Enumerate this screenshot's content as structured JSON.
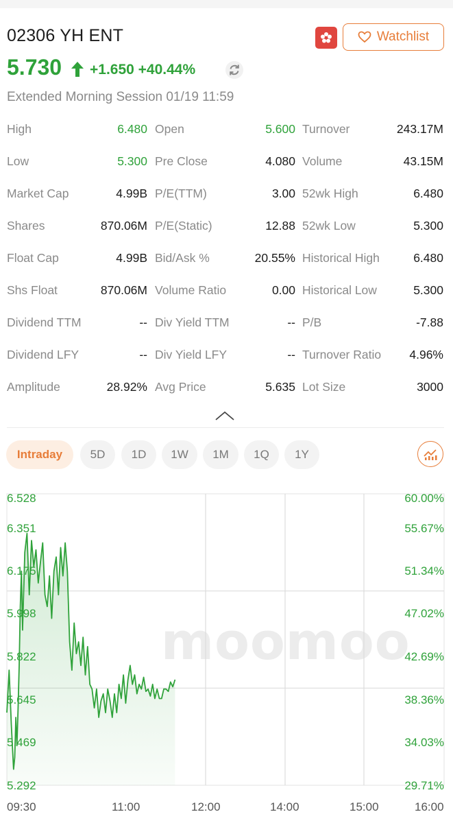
{
  "header": {
    "title": "02306 YH ENT",
    "watchlist_label": "Watchlist"
  },
  "quote": {
    "price": "5.730",
    "change": "+1.650",
    "change_pct": "+40.44%",
    "session": "Extended Morning Session 01/19 11:59"
  },
  "stats": {
    "col1": [
      {
        "label": "High",
        "value": "6.480",
        "color": "green"
      },
      {
        "label": "Low",
        "value": "5.300",
        "color": "green"
      },
      {
        "label": "Market Cap",
        "value": "4.99B"
      },
      {
        "label": "Shares",
        "value": "870.06M"
      },
      {
        "label": "Float Cap",
        "value": "4.99B"
      },
      {
        "label": "Shs Float",
        "value": "870.06M"
      },
      {
        "label": "Dividend TTM",
        "value": "--"
      },
      {
        "label": "Dividend LFY",
        "value": "--"
      },
      {
        "label": "Amplitude",
        "value": "28.92%"
      }
    ],
    "col2": [
      {
        "label": "Open",
        "value": "5.600",
        "color": "green"
      },
      {
        "label": "Pre Close",
        "value": "4.080"
      },
      {
        "label": "P/E(TTM)",
        "value": "3.00"
      },
      {
        "label": "P/E(Static)",
        "value": "12.88"
      },
      {
        "label": "Bid/Ask %",
        "value": "20.55%"
      },
      {
        "label": "Volume Ratio",
        "value": "0.00"
      },
      {
        "label": "Div Yield TTM",
        "value": "--"
      },
      {
        "label": "Div Yield LFY",
        "value": "--"
      },
      {
        "label": "Avg Price",
        "value": "5.635"
      }
    ],
    "col3": [
      {
        "label": "Turnover",
        "value": "243.17M"
      },
      {
        "label": "Volume",
        "value": "43.15M"
      },
      {
        "label": "52wk High",
        "value": "6.480"
      },
      {
        "label": "52wk Low",
        "value": "5.300"
      },
      {
        "label": "Historical High",
        "value": "6.480"
      },
      {
        "label": "Historical Low",
        "value": "5.300"
      },
      {
        "label": "P/B",
        "value": "-7.88"
      },
      {
        "label": "Turnover Ratio",
        "value": "4.96%"
      },
      {
        "label": "Lot Size",
        "value": "3000"
      }
    ]
  },
  "tabs": [
    "Intraday",
    "5D",
    "1D",
    "1W",
    "1M",
    "1Q",
    "1Y"
  ],
  "active_tab": "Intraday",
  "watermark": "moomoo",
  "colors": {
    "up": "#2fa23a",
    "accent": "#e77d39",
    "flag": "#e0463f"
  },
  "icons": [
    "hk-flag-icon",
    "heart-icon",
    "arrow-up-icon",
    "refresh-icon",
    "chevron-up-icon",
    "chart-settings-icon"
  ],
  "chart_data": {
    "type": "line",
    "y_left_ticks": [
      "6.528",
      "6.351",
      "6.175",
      "5.998",
      "5.822",
      "5.645",
      "5.469",
      "5.292"
    ],
    "y_right_ticks": [
      "60.00%",
      "55.67%",
      "51.34%",
      "47.02%",
      "42.69%",
      "38.36%",
      "34.03%",
      "29.71%"
    ],
    "x_ticks": [
      "09:30",
      "11:00",
      "12:00",
      "14:00",
      "15:00",
      "16:00"
    ],
    "ylim": [
      5.292,
      6.528
    ],
    "x_domain_minutes": [
      0,
      390
    ],
    "series": [
      {
        "x": [
          0,
          2,
          4,
          6,
          7,
          8,
          9,
          10,
          11,
          12,
          13,
          14,
          16,
          18,
          20,
          22,
          24,
          26,
          28,
          30,
          32,
          34,
          36,
          38,
          40,
          42,
          44,
          46,
          48,
          50,
          52,
          54,
          56,
          58,
          60,
          62,
          64,
          66,
          68,
          70,
          72,
          74,
          76,
          78,
          80,
          82,
          84,
          86,
          88,
          90,
          92,
          94,
          96,
          98,
          100,
          102,
          104,
          106,
          108,
          110,
          112,
          114,
          116,
          118,
          120,
          122,
          124,
          126,
          128,
          130,
          132,
          134,
          136,
          138,
          140,
          142,
          144,
          146,
          148,
          150
        ],
        "y": [
          5.6,
          5.78,
          5.55,
          5.36,
          5.41,
          5.58,
          5.46,
          5.62,
          5.8,
          6.05,
          6.2,
          5.95,
          6.28,
          6.36,
          6.1,
          6.33,
          6.22,
          6.29,
          6.15,
          6.24,
          6.32,
          6.1,
          6.05,
          6.18,
          6.0,
          6.2,
          6.26,
          6.1,
          6.3,
          6.18,
          6.32,
          6.2,
          5.9,
          5.78,
          5.98,
          5.85,
          5.9,
          5.8,
          5.92,
          5.76,
          5.88,
          5.72,
          5.7,
          5.62,
          5.7,
          5.58,
          5.65,
          5.68,
          5.6,
          5.7,
          5.65,
          5.58,
          5.68,
          5.6,
          5.72,
          5.66,
          5.76,
          5.64,
          5.74,
          5.8,
          5.72,
          5.76,
          5.68,
          5.72,
          5.7,
          5.75,
          5.69,
          5.7,
          5.67,
          5.72,
          5.66,
          5.7,
          5.66,
          5.66,
          5.7,
          5.7,
          5.69,
          5.73,
          5.71,
          5.74
        ]
      }
    ]
  }
}
